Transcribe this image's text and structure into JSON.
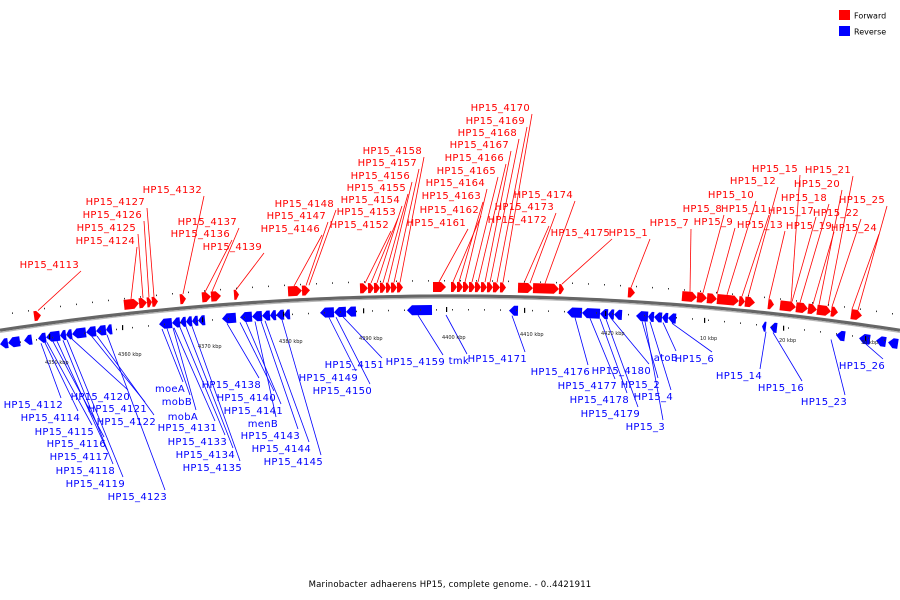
{
  "legend": [
    {
      "label": "Forward",
      "color": "#ff0000"
    },
    {
      "label": "Reverse",
      "color": "#0000ff"
    }
  ],
  "caption": "Marinobacter adhaerens HP15, complete genome. - 0..4421911",
  "colors": {
    "forward": "#ff0000",
    "reverse": "#0000ff",
    "backbone": "#666666"
  },
  "axis": {
    "unit": "kbp",
    "ticks": [
      "4350 kbp",
      "4360 kbp",
      "4370 kbp",
      "4380 kbp",
      "4390 kbp",
      "4400 kbp",
      "4410 kbp",
      "4420 kbp",
      "10 kbp",
      "20 kbp",
      "30 kbp"
    ]
  },
  "forward_labels": [
    "HP15_4113",
    "HP15_4124",
    "HP15_4125",
    "HP15_4126",
    "HP15_4127",
    "HP15_4132",
    "HP15_4136",
    "HP15_4137",
    "HP15_4139",
    "HP15_4146",
    "HP15_4147",
    "HP15_4148",
    "HP15_4152",
    "HP15_4153",
    "HP15_4154",
    "HP15_4155",
    "HP15_4156",
    "HP15_4157",
    "HP15_4158",
    "HP15_4161",
    "HP15_4162",
    "HP15_4163",
    "HP15_4164",
    "HP15_4165",
    "HP15_4166",
    "HP15_4167",
    "HP15_4168",
    "HP15_4169",
    "HP15_4170",
    "HP15_4172",
    "HP15_4173",
    "HP15_4174",
    "HP15_4175",
    "HP15_1",
    "HP15_7",
    "HP15_8",
    "HP15_9",
    "HP15_10",
    "HP15_11",
    "HP15_12",
    "HP15_13",
    "HP15_15",
    "HP15_17",
    "HP15_18",
    "HP15_19",
    "HP15_20",
    "HP15_21",
    "HP15_22",
    "HP15_24",
    "HP15_25"
  ],
  "reverse_labels": [
    "HP15_4112",
    "HP15_4114",
    "HP15_4115",
    "HP15_4116",
    "HP15_4117",
    "HP15_4118",
    "HP15_4119",
    "HP15_4120",
    "HP15_4121",
    "HP15_4122",
    "HP15_4123",
    "moeA",
    "mobB",
    "mobA",
    "HP15_4131",
    "HP15_4133",
    "HP15_4134",
    "HP15_4135",
    "HP15_4138",
    "HP15_4140",
    "HP15_4141",
    "menB",
    "HP15_4143",
    "HP15_4144",
    "HP15_4145",
    "HP15_4149",
    "HP15_4150",
    "HP15_4151",
    "HP15_4159",
    "tmk",
    "HP15_4171",
    "HP15_4176",
    "HP15_4177",
    "HP15_4178",
    "HP15_4179",
    "HP15_4180",
    "HP15_2",
    "HP15_4",
    "HP15_3",
    "atoB",
    "HP15_6",
    "HP15_14",
    "HP15_16",
    "HP15_23",
    "HP15_26"
  ]
}
